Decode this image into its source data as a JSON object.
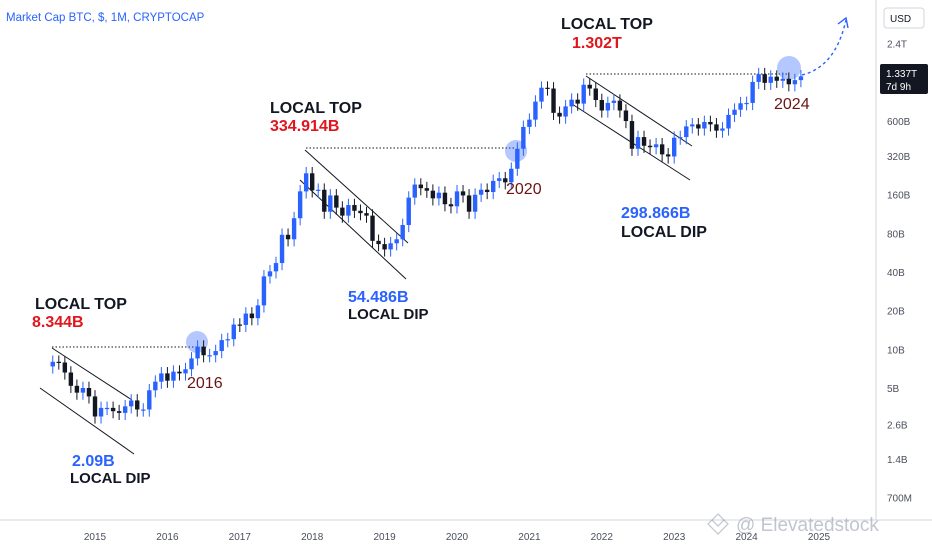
{
  "header": {
    "symbol": "Market Cap BTC, $, 1M, CRYPTOCAP"
  },
  "axis": {
    "currency": "USD",
    "y_ticks": [
      "2.4T",
      "1.2T",
      "600B",
      "320B",
      "160B",
      "80B",
      "40B",
      "20B",
      "10B",
      "5B",
      "2.6B",
      "1.4B",
      "700M"
    ],
    "x_ticks": [
      "2015",
      "2016",
      "2017",
      "2018",
      "2019",
      "2020",
      "2021",
      "2022",
      "2023",
      "2024",
      "2025"
    ],
    "price_tag": {
      "value": "1.337T",
      "countdown": "7d 9h"
    }
  },
  "annotations": {
    "top_2014": {
      "title": "LOCAL TOP",
      "value": "8.344B"
    },
    "dip_2015": {
      "value": "2.09B",
      "title": "LOCAL DIP"
    },
    "top_2017": {
      "title": "LOCAL TOP",
      "value": "334.914B"
    },
    "dip_2018": {
      "value": "54.486B",
      "title": "LOCAL DIP"
    },
    "top_2021": {
      "title": "LOCAL TOP",
      "value": "1.302T"
    },
    "dip_2022": {
      "value": "298.866B",
      "title": "LOCAL DIP"
    },
    "breakout_labels": [
      "2016",
      "2020",
      "2024"
    ]
  },
  "watermark": {
    "text": "@ Elevatedstock"
  },
  "colors": {
    "up": "#2962ff",
    "down": "#131722",
    "top_value": "#e0161e",
    "dip_value": "#2962ff",
    "year_label": "#6b1414",
    "circle": "#8fa8ef",
    "header": "#2962ff"
  },
  "chart_data": {
    "type": "candlestick",
    "title": "Market Cap BTC, $, 1M, CRYPTOCAP",
    "scale": "log",
    "y_unit": "USD",
    "x_range": [
      "2014-06",
      "2025-01"
    ],
    "y_range": [
      550000000,
      3000000000000
    ],
    "grid": false,
    "series": [
      {
        "name": "Local tops",
        "points": [
          {
            "x": "2014-01",
            "y": 8344000000
          },
          {
            "x": "2017-12",
            "y": 334914000000
          },
          {
            "x": "2021-11",
            "y": 1302000000000
          }
        ]
      },
      {
        "name": "Local dips",
        "points": [
          {
            "x": "2015-01",
            "y": 2090000000
          },
          {
            "x": "2018-12",
            "y": 54486000000
          },
          {
            "x": "2022-11",
            "y": 298866000000
          }
        ]
      }
    ],
    "breakout_markers": [
      {
        "label": "2016",
        "x": "2016-06",
        "y": 10000000000
      },
      {
        "label": "2020",
        "x": "2020-11",
        "y": 330000000000
      },
      {
        "label": "2024",
        "x": "2024-03",
        "y": 1300000000000
      }
    ],
    "last_value": 1337000000000,
    "monthly_closes": [
      [
        "2014-06",
        8.0
      ],
      [
        "2014-07",
        7.9
      ],
      [
        "2014-08",
        6.6
      ],
      [
        "2014-09",
        5.2
      ],
      [
        "2014-10",
        4.6
      ],
      [
        "2014-11",
        5.0
      ],
      [
        "2014-12",
        4.3
      ],
      [
        "2015-01",
        3.0
      ],
      [
        "2015-02",
        3.5
      ],
      [
        "2015-03",
        3.5
      ],
      [
        "2015-04",
        3.3
      ],
      [
        "2015-05",
        3.2
      ],
      [
        "2015-06",
        3.6
      ],
      [
        "2015-07",
        4.0
      ],
      [
        "2015-08",
        3.4
      ],
      [
        "2015-09",
        3.4
      ],
      [
        "2015-10",
        4.8
      ],
      [
        "2015-11",
        5.6
      ],
      [
        "2015-12",
        6.5
      ],
      [
        "2016-01",
        5.7
      ],
      [
        "2016-02",
        6.7
      ],
      [
        "2016-03",
        6.5
      ],
      [
        "2016-04",
        7.0
      ],
      [
        "2016-05",
        8.5
      ],
      [
        "2016-06",
        10.5
      ],
      [
        "2016-07",
        9.0
      ],
      [
        "2016-08",
        9.0
      ],
      [
        "2016-09",
        9.7
      ],
      [
        "2016-10",
        11.8
      ],
      [
        "2016-11",
        12.0
      ],
      [
        "2016-12",
        15.6
      ],
      [
        "2017-01",
        15.5
      ],
      [
        "2017-02",
        19.0
      ],
      [
        "2017-03",
        17.5
      ],
      [
        "2017-04",
        22.0
      ],
      [
        "2017-05",
        37.0
      ],
      [
        "2017-06",
        40.5
      ],
      [
        "2017-07",
        47.0
      ],
      [
        "2017-08",
        78.0
      ],
      [
        "2017-09",
        72.0
      ],
      [
        "2017-10",
        105.0
      ],
      [
        "2017-11",
        170.0
      ],
      [
        "2017-12",
        235.0
      ],
      [
        "2018-01",
        173.0
      ],
      [
        "2018-02",
        175.0
      ],
      [
        "2018-03",
        118.0
      ],
      [
        "2018-04",
        158.0
      ],
      [
        "2018-05",
        127.0
      ],
      [
        "2018-06",
        110.0
      ],
      [
        "2018-07",
        133.0
      ],
      [
        "2018-08",
        120.0
      ],
      [
        "2018-09",
        115.0
      ],
      [
        "2018-10",
        110.0
      ],
      [
        "2018-11",
        70.0
      ],
      [
        "2018-12",
        66.0
      ],
      [
        "2019-01",
        60.0
      ],
      [
        "2019-02",
        67.0
      ],
      [
        "2019-03",
        72.0
      ],
      [
        "2019-04",
        93.0
      ],
      [
        "2019-05",
        152.0
      ],
      [
        "2019-06",
        192.0
      ],
      [
        "2019-07",
        180.0
      ],
      [
        "2019-08",
        172.0
      ],
      [
        "2019-09",
        150.0
      ],
      [
        "2019-10",
        166.0
      ],
      [
        "2019-11",
        135.0
      ],
      [
        "2019-12",
        130.0
      ],
      [
        "2020-01",
        170.0
      ],
      [
        "2020-02",
        158.0
      ],
      [
        "2020-03",
        118.0
      ],
      [
        "2020-04",
        160.0
      ],
      [
        "2020-05",
        175.0
      ],
      [
        "2020-06",
        168.0
      ],
      [
        "2020-07",
        205.0
      ],
      [
        "2020-08",
        215.0
      ],
      [
        "2020-09",
        200.0
      ],
      [
        "2020-10",
        255.0
      ],
      [
        "2020-11",
        365.0
      ],
      [
        "2020-12",
        540.0
      ],
      [
        "2021-01",
        615.0
      ],
      [
        "2021-02",
        850.0
      ],
      [
        "2021-03",
        1090.0
      ],
      [
        "2021-04",
        1075.0
      ],
      [
        "2021-05",
        695.0
      ],
      [
        "2021-06",
        650.0
      ],
      [
        "2021-07",
        780.0
      ],
      [
        "2021-08",
        880.0
      ],
      [
        "2021-09",
        820.0
      ],
      [
        "2021-10",
        1150.0
      ],
      [
        "2021-11",
        1075.0
      ],
      [
        "2021-12",
        875.0
      ],
      [
        "2022-01",
        725.0
      ],
      [
        "2022-02",
        830.0
      ],
      [
        "2022-03",
        865.0
      ],
      [
        "2022-04",
        725.0
      ],
      [
        "2022-05",
        600.0
      ],
      [
        "2022-06",
        365.0
      ],
      [
        "2022-07",
        450.0
      ],
      [
        "2022-08",
        385.0
      ],
      [
        "2022-09",
        375.0
      ],
      [
        "2022-10",
        395.0
      ],
      [
        "2022-11",
        330.0
      ],
      [
        "2022-12",
        318.0
      ],
      [
        "2023-01",
        445.0
      ],
      [
        "2023-02",
        450.0
      ],
      [
        "2023-03",
        545.0
      ],
      [
        "2023-04",
        565.0
      ],
      [
        "2023-05",
        525.0
      ],
      [
        "2023-06",
        590.0
      ],
      [
        "2023-07",
        565.0
      ],
      [
        "2023-08",
        505.0
      ],
      [
        "2023-09",
        525.0
      ],
      [
        "2023-10",
        670.0
      ],
      [
        "2023-11",
        735.0
      ],
      [
        "2023-12",
        825.0
      ],
      [
        "2024-01",
        830.0
      ],
      [
        "2024-02",
        1210.0
      ],
      [
        "2024-03",
        1390.0
      ],
      [
        "2024-04",
        1190.0
      ],
      [
        "2024-05",
        1330.0
      ],
      [
        "2024-06",
        1235.0
      ],
      [
        "2024-07",
        1280.0
      ],
      [
        "2024-08",
        1160.0
      ],
      [
        "2024-09",
        1250.0
      ],
      [
        "2024-10",
        1337.0
      ]
    ],
    "monthly_closes_unit": "billion USD (approximate close, read from chart)"
  }
}
